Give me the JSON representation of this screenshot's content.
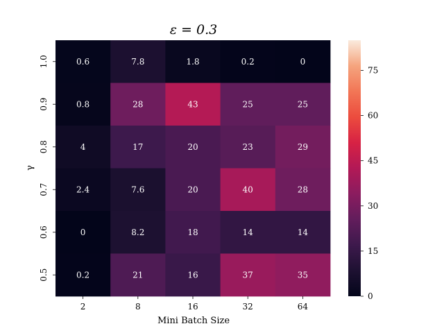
{
  "chart_data": {
    "type": "heatmap",
    "title": "ε = 0.3",
    "xlabel": "Mini Batch Size",
    "ylabel": "γ",
    "x_categories": [
      "2",
      "8",
      "16",
      "32",
      "64"
    ],
    "y_categories": [
      "1.0",
      "0.9",
      "0.8",
      "0.7",
      "0.6",
      "0.5"
    ],
    "values": [
      [
        0.6,
        7.8,
        1.8,
        0.2,
        0
      ],
      [
        0.8,
        28,
        43,
        25,
        25
      ],
      [
        4,
        17,
        20,
        23,
        29
      ],
      [
        2.4,
        7.6,
        20,
        40,
        28
      ],
      [
        0,
        8.2,
        18,
        14,
        14
      ],
      [
        0.2,
        21,
        16,
        37,
        35
      ]
    ],
    "value_labels": [
      [
        "0.6",
        "7.8",
        "1.8",
        "0.2",
        "0"
      ],
      [
        "0.8",
        "28",
        "43",
        "25",
        "25"
      ],
      [
        "4",
        "17",
        "20",
        "23",
        "29"
      ],
      [
        "2.4",
        "7.6",
        "20",
        "40",
        "28"
      ],
      [
        "0",
        "8.2",
        "18",
        "14",
        "14"
      ],
      [
        "0.2",
        "21",
        "16",
        "37",
        "35"
      ]
    ],
    "colorbar": {
      "colormap": "rocket",
      "range": [
        0,
        85
      ],
      "ticks": [
        0,
        15,
        30,
        45,
        60,
        75
      ],
      "tick_labels": [
        "0",
        "15",
        "30",
        "45",
        "60",
        "75"
      ]
    }
  }
}
